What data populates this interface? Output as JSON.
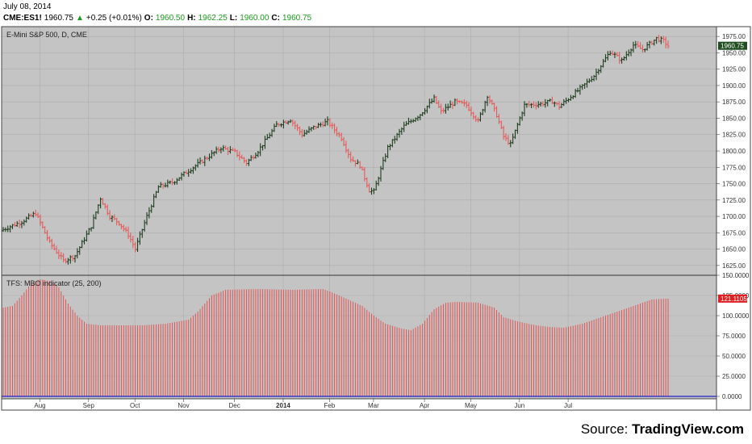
{
  "header": {
    "date": "July 08, 2014",
    "ticker": "CME:ES1!",
    "last": "1960.75",
    "change": "+0.25 (+0.01%)",
    "o_label": "O:",
    "o_val": "1960.50",
    "h_label": "H:",
    "h_val": "1962.25",
    "l_label": "L:",
    "l_val": "1960.00",
    "c_label": "C:",
    "c_val": "1960.75"
  },
  "source": {
    "prefix": "Source: ",
    "brand": "TradingView.com"
  },
  "colors": {
    "up": "#1f3d1f",
    "down": "#e45a5a",
    "panel_bg": "#c4c4c4",
    "indicator_bar": "#e05555",
    "baseline": "#2222cc",
    "price_tag": "#1f4d1f",
    "ind_tag": "#e02020"
  },
  "chart_data": [
    {
      "type": "ohlc",
      "title": "E-Mini S&P 500, D, CME",
      "x_labels": [
        "Aug",
        "Sep",
        "Oct",
        "Nov",
        "Dec",
        "2014",
        "Feb",
        "Mar",
        "Apr",
        "May",
        "Jun",
        "Jul"
      ],
      "y_ticks": [
        "1975.00",
        "1950.00",
        "1925.00",
        "1900.00",
        "1875.00",
        "1850.00",
        "1825.00",
        "1800.00",
        "1775.00",
        "1750.00",
        "1725.00",
        "1700.00",
        "1675.00",
        "1650.00",
        "1625.00"
      ],
      "ylim": [
        1610,
        1990
      ],
      "last_price_label": "1960.75",
      "last_price": 1960.75,
      "anchors": [
        [
          0,
          1680
        ],
        [
          8,
          1692
        ],
        [
          14,
          1705
        ],
        [
          20,
          1660
        ],
        [
          26,
          1632
        ],
        [
          31,
          1640
        ],
        [
          38,
          1685
        ],
        [
          42,
          1728
        ],
        [
          46,
          1700
        ],
        [
          50,
          1690
        ],
        [
          54,
          1672
        ],
        [
          57,
          1650
        ],
        [
          62,
          1700
        ],
        [
          67,
          1745
        ],
        [
          73,
          1752
        ],
        [
          80,
          1770
        ],
        [
          86,
          1785
        ],
        [
          94,
          1805
        ],
        [
          100,
          1798
        ],
        [
          105,
          1782
        ],
        [
          110,
          1800
        ],
        [
          118,
          1840
        ],
        [
          124,
          1848
        ],
        [
          129,
          1825
        ],
        [
          134,
          1836
        ],
        [
          140,
          1845
        ],
        [
          146,
          1820
        ],
        [
          150,
          1788
        ],
        [
          154,
          1778
        ],
        [
          158,
          1740
        ],
        [
          160,
          1738
        ],
        [
          166,
          1805
        ],
        [
          173,
          1838
        ],
        [
          180,
          1856
        ],
        [
          186,
          1880
        ],
        [
          189,
          1860
        ],
        [
          195,
          1875
        ],
        [
          200,
          1870
        ],
        [
          205,
          1845
        ],
        [
          209,
          1885
        ],
        [
          213,
          1855
        ],
        [
          216,
          1822
        ],
        [
          219,
          1810
        ],
        [
          225,
          1870
        ],
        [
          232,
          1872
        ],
        [
          237,
          1876
        ],
        [
          240,
          1868
        ],
        [
          245,
          1883
        ],
        [
          250,
          1898
        ],
        [
          255,
          1915
        ],
        [
          262,
          1952
        ],
        [
          267,
          1938
        ],
        [
          272,
          1962
        ],
        [
          276,
          1955
        ],
        [
          282,
          1972
        ],
        [
          285,
          1968
        ],
        [
          287,
          1960.75
        ]
      ]
    },
    {
      "type": "bar",
      "title": "TFS: MBO indicator (25, 200)",
      "y_ticks": [
        "150.0000",
        "125.0000",
        "100.0000",
        "75.0000",
        "50.0000",
        "25.0000",
        "0.0000"
      ],
      "ylim": [
        -3,
        150
      ],
      "last_value_label": "121.1105",
      "last_value": 121.1105,
      "anchors": [
        [
          0,
          110
        ],
        [
          4,
          112
        ],
        [
          8,
          125
        ],
        [
          12,
          140
        ],
        [
          16,
          145
        ],
        [
          20,
          143
        ],
        [
          24,
          135
        ],
        [
          28,
          115
        ],
        [
          32,
          100
        ],
        [
          36,
          90
        ],
        [
          42,
          88
        ],
        [
          60,
          88
        ],
        [
          70,
          90
        ],
        [
          80,
          95
        ],
        [
          84,
          105
        ],
        [
          90,
          125
        ],
        [
          96,
          132
        ],
        [
          110,
          133
        ],
        [
          125,
          132
        ],
        [
          138,
          133
        ],
        [
          141,
          130
        ],
        [
          145,
          125
        ],
        [
          155,
          112
        ],
        [
          160,
          100
        ],
        [
          165,
          90
        ],
        [
          172,
          84
        ],
        [
          176,
          82
        ],
        [
          181,
          90
        ],
        [
          186,
          108
        ],
        [
          191,
          116
        ],
        [
          196,
          117
        ],
        [
          205,
          116
        ],
        [
          212,
          110
        ],
        [
          216,
          98
        ],
        [
          222,
          93
        ],
        [
          230,
          88
        ],
        [
          236,
          86
        ],
        [
          242,
          85
        ],
        [
          250,
          90
        ],
        [
          260,
          100
        ],
        [
          270,
          110
        ],
        [
          280,
          120
        ],
        [
          287,
          121.1105
        ]
      ]
    }
  ]
}
